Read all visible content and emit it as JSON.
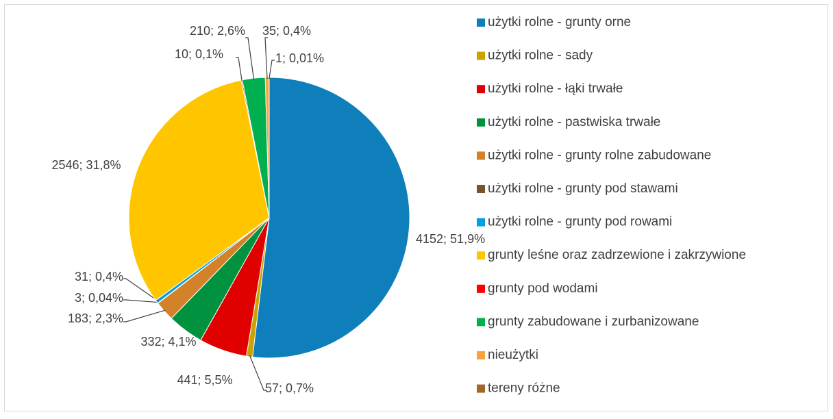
{
  "chart_data": {
    "type": "pie",
    "categories": [
      "użytki rolne - grunty orne",
      "użytki rolne - sady",
      "użytki rolne - łąki trwałe",
      "użytki rolne - pastwiska trwałe",
      "użytki rolne - grunty rolne zabudowane",
      "użytki rolne - grunty pod stawami",
      "użytki rolne - grunty pod rowami",
      "grunty leśne oraz zadrzewione i zakrzywione",
      "grunty pod wodami",
      "grunty zabudowane i zurbanizowane",
      "nieużytki",
      "tereny różne"
    ],
    "values": [
      4152,
      57,
      441,
      332,
      183,
      3,
      31,
      2546,
      10,
      210,
      35,
      1
    ],
    "value_labels": [
      "4152; 51,9%",
      "57; 0,7%",
      "441; 5,5%",
      "332; 4,1%",
      "183; 2,3%",
      "3; 0,04%",
      "31; 0,4%",
      "2546; 31,8%",
      "10; 0,1%",
      "210; 2,6%",
      "35; 0,4%",
      "1; 0,01%"
    ],
    "colors": [
      "#0f7fbc",
      "#c9a300",
      "#e00000",
      "#00923f",
      "#d4822a",
      "#7a5230",
      "#00a0e3",
      "#ffc600",
      "#ff0000",
      "#00b050",
      "#f7a23a",
      "#a0662a"
    ],
    "legend": "right"
  }
}
